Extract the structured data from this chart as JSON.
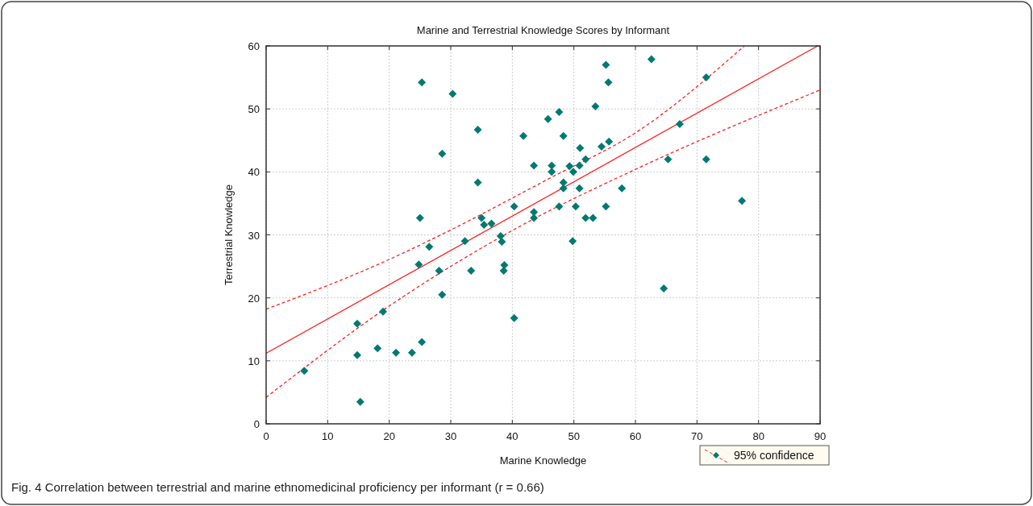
{
  "chart_data": {
    "type": "scatter",
    "title": "Marine and Terrestrial Knowledge Scores by Informant",
    "xlabel": "Marine Knowledge",
    "ylabel": "Terrestrial Knowledge",
    "annotations": [
      "Fig. 4 Correlation between terrestrial and marine ethnomedicinal proficiency per informant (r = 0.66)"
    ],
    "xlim": [
      0,
      90
    ],
    "ylim": [
      0,
      60
    ],
    "xticks": [
      0,
      10,
      20,
      30,
      40,
      50,
      60,
      70,
      80,
      90
    ],
    "yticks": [
      0,
      10,
      20,
      30,
      40,
      50,
      60
    ],
    "grid": true,
    "legend": "bottom right",
    "series": [
      {
        "color": "#007a70",
        "marker": "diamond",
        "x": [
          6.2,
          14.8,
          14.8,
          15.3,
          18.1,
          19.0,
          21.1,
          23.7,
          25.3,
          24.8,
          26.5,
          28.1,
          28.6,
          32.3,
          33.3,
          38.1,
          38.3,
          38.7,
          38.6,
          40.3,
          35.4,
          25.3,
          30.3,
          34.4,
          41.8,
          28.6,
          43.5,
          34.4,
          45.8,
          25.0,
          40.3,
          35.0,
          36.6,
          43.5,
          43.5,
          55.2,
          55.6,
          62.6,
          71.5,
          53.5,
          47.6,
          48.3,
          67.2,
          51.0,
          54.5,
          55.7,
          51.9,
          65.3,
          71.5,
          46.4,
          46.4,
          49.3,
          49.9,
          50.9,
          48.3,
          48.3,
          50.9,
          57.8,
          47.6,
          50.3,
          55.2,
          51.9,
          53.1,
          77.3,
          49.8,
          64.6
        ],
        "values": [
          8.4,
          15.9,
          10.9,
          3.5,
          12.0,
          17.8,
          11.3,
          11.3,
          13.0,
          25.3,
          28.1,
          24.3,
          20.5,
          29.0,
          24.3,
          29.8,
          28.9,
          25.2,
          24.3,
          16.8,
          31.6,
          54.2,
          52.4,
          46.7,
          45.7,
          42.9,
          41.0,
          38.3,
          48.4,
          32.7,
          34.5,
          32.7,
          31.8,
          33.6,
          32.7,
          57.0,
          54.2,
          57.9,
          55.0,
          50.4,
          49.5,
          45.7,
          47.6,
          43.8,
          44.0,
          44.8,
          42.0,
          42.0,
          42.0,
          41.0,
          40.0,
          40.9,
          40.0,
          41.0,
          38.3,
          37.4,
          37.4,
          37.4,
          34.5,
          34.5,
          34.5,
          32.7,
          32.7,
          35.4,
          29.0,
          21.5
        ]
      },
      {
        "type": "line",
        "color": "#ff2020",
        "line_style": "solid",
        "marker": "none",
        "x": [
          0,
          89.6
        ],
        "values": [
          11.2,
          60.0
        ]
      },
      {
        "type": "line",
        "name": "95% confidence",
        "color": "#ff2020",
        "line_style": "dashed",
        "marker": "none",
        "x": [
          0,
          20,
          28.8,
          45.9,
          60,
          77.7
        ],
        "values": [
          18.2,
          26.1,
          30.2,
          38.9,
          46.2,
          60.0
        ]
      },
      {
        "type": "line",
        "color": "#ff2020",
        "line_style": "dashed",
        "marker": "none",
        "x": [
          0,
          20,
          41.5,
          60,
          90
        ],
        "values": [
          4.2,
          18.7,
          31.5,
          40.4,
          53.0
        ]
      }
    ]
  }
}
